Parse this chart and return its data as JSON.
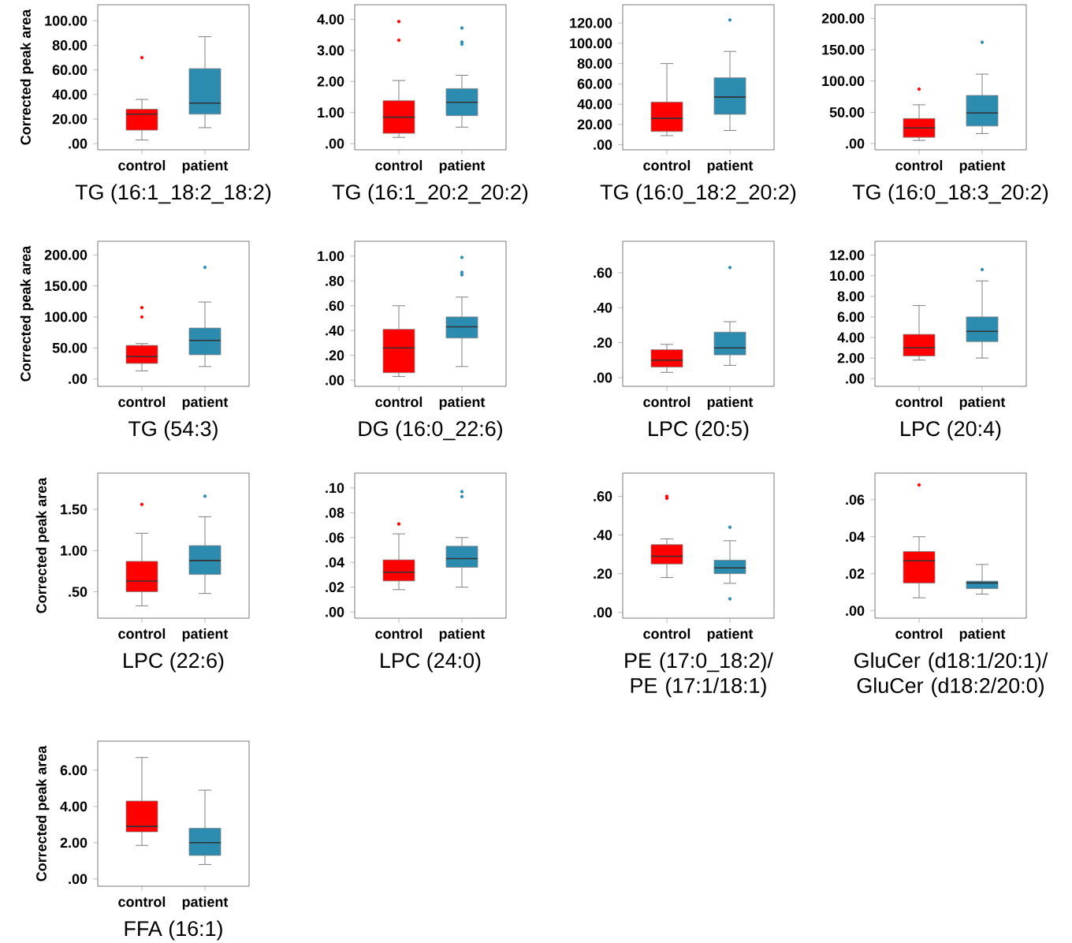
{
  "chart_data": [
    {
      "type": "box",
      "xlabel": "TG (16:1_18:2_18:2)",
      "ylabel": "Corrected peak area",
      "categories": [
        "control",
        "patient"
      ],
      "colors": [
        "#ff0000",
        "#2b8cb0"
      ],
      "ylim": [
        -5,
        113
      ],
      "yticks": [
        {
          "value": 0,
          "label": ".00"
        },
        {
          "value": 20,
          "label": "20.00"
        },
        {
          "value": 40,
          "label": "40.00"
        },
        {
          "value": 60,
          "label": "60.00"
        },
        {
          "value": 80,
          "label": "80.00"
        },
        {
          "value": 100,
          "label": "100.00"
        }
      ],
      "boxes": [
        {
          "low": 3,
          "q1": 11,
          "median": 24,
          "q3": 28,
          "high": 36,
          "outliers": [
            70
          ]
        },
        {
          "low": 13,
          "q1": 24,
          "median": 33,
          "q3": 61,
          "high": 87
        }
      ]
    },
    {
      "type": "box",
      "xlabel": "TG (16:1_20:2_20:2)",
      "categories": [
        "control",
        "patient"
      ],
      "colors": [
        "#ff0000",
        "#2b8cb0"
      ],
      "ylim": [
        -0.2,
        4.47
      ],
      "yticks": [
        {
          "value": 0,
          "label": ".00"
        },
        {
          "value": 1,
          "label": "1.00"
        },
        {
          "value": 2,
          "label": "2.00"
        },
        {
          "value": 3,
          "label": "3.00"
        },
        {
          "value": 4,
          "label": "4.00"
        }
      ],
      "boxes": [
        {
          "low": 0.2,
          "q1": 0.33,
          "median": 0.85,
          "q3": 1.38,
          "high": 2.03,
          "outliers": [
            3.33,
            3.93
          ]
        },
        {
          "low": 0.53,
          "q1": 0.9,
          "median": 1.33,
          "q3": 1.77,
          "high": 2.2,
          "outliers": [
            3.2,
            3.27,
            3.72
          ]
        }
      ]
    },
    {
      "type": "box",
      "xlabel": "TG (16:0_18:2_20:2)",
      "categories": [
        "control",
        "patient"
      ],
      "colors": [
        "#ff0000",
        "#2b8cb0"
      ],
      "ylim": [
        -5,
        138
      ],
      "yticks": [
        {
          "value": 0,
          "label": ".00"
        },
        {
          "value": 20,
          "label": "20.00"
        },
        {
          "value": 40,
          "label": "40.00"
        },
        {
          "value": 60,
          "label": "60.00"
        },
        {
          "value": 80,
          "label": "80.00"
        },
        {
          "value": 100,
          "label": "100.00"
        },
        {
          "value": 120,
          "label": "120.00"
        }
      ],
      "boxes": [
        {
          "low": 9,
          "q1": 13,
          "median": 26,
          "q3": 42,
          "high": 80
        },
        {
          "low": 14,
          "q1": 30,
          "median": 47,
          "q3": 66,
          "high": 92,
          "outliers": [
            123
          ]
        }
      ]
    },
    {
      "type": "box",
      "xlabel": "TG (16:0_18:3_20:2)",
      "categories": [
        "control",
        "patient"
      ],
      "colors": [
        "#ff0000",
        "#2b8cb0"
      ],
      "ylim": [
        -10,
        222
      ],
      "yticks": [
        {
          "value": 0,
          "label": ".00"
        },
        {
          "value": 50,
          "label": "50.00"
        },
        {
          "value": 100,
          "label": "100.00"
        },
        {
          "value": 150,
          "label": "150.00"
        },
        {
          "value": 200,
          "label": "200.00"
        }
      ],
      "boxes": [
        {
          "low": 5,
          "q1": 10,
          "median": 25,
          "q3": 40,
          "high": 62,
          "outliers": [
            87
          ]
        },
        {
          "low": 16,
          "q1": 28,
          "median": 49,
          "q3": 77,
          "high": 111,
          "outliers": [
            162
          ]
        }
      ]
    },
    {
      "type": "box",
      "xlabel": "TG (54:3)",
      "ylabel": "Corrected peak area",
      "categories": [
        "control",
        "patient"
      ],
      "colors": [
        "#ff0000",
        "#2b8cb0"
      ],
      "ylim": [
        -12,
        222
      ],
      "yticks": [
        {
          "value": 0,
          "label": ".00"
        },
        {
          "value": 50,
          "label": "50.00"
        },
        {
          "value": 100,
          "label": "100.00"
        },
        {
          "value": 150,
          "label": "150.00"
        },
        {
          "value": 200,
          "label": "200.00"
        }
      ],
      "boxes": [
        {
          "low": 13,
          "q1": 25,
          "median": 36,
          "q3": 54,
          "high": 57,
          "outliers": [
            100,
            115
          ]
        },
        {
          "low": 20,
          "q1": 39,
          "median": 62,
          "q3": 82,
          "high": 124,
          "outliers": [
            180
          ]
        }
      ]
    },
    {
      "type": "box",
      "xlabel": "DG (16:0_22:6)",
      "categories": [
        "control",
        "patient"
      ],
      "colors": [
        "#ff0000",
        "#2b8cb0"
      ],
      "ylim": [
        -0.05,
        1.12
      ],
      "yticks": [
        {
          "value": 0,
          "label": ".00"
        },
        {
          "value": 0.2,
          "label": ".20"
        },
        {
          "value": 0.4,
          "label": ".40"
        },
        {
          "value": 0.6,
          "label": ".60"
        },
        {
          "value": 0.8,
          "label": ".80"
        },
        {
          "value": 1,
          "label": "1.00"
        }
      ],
      "boxes": [
        {
          "low": 0.03,
          "q1": 0.06,
          "median": 0.26,
          "q3": 0.41,
          "high": 0.6
        },
        {
          "low": 0.11,
          "q1": 0.34,
          "median": 0.43,
          "q3": 0.51,
          "high": 0.67,
          "outliers": [
            0.85,
            0.87,
            0.99
          ]
        }
      ]
    },
    {
      "type": "box",
      "xlabel": "LPC (20:5)",
      "categories": [
        "control",
        "patient"
      ],
      "colors": [
        "#ff0000",
        "#2b8cb0"
      ],
      "ylim": [
        -0.05,
        0.78
      ],
      "yticks": [
        {
          "value": 0,
          "label": ".00"
        },
        {
          "value": 0.2,
          "label": ".20"
        },
        {
          "value": 0.4,
          "label": ".40"
        },
        {
          "value": 0.6,
          "label": ".60"
        }
      ],
      "boxes": [
        {
          "low": 0.03,
          "q1": 0.06,
          "median": 0.1,
          "q3": 0.16,
          "high": 0.19
        },
        {
          "low": 0.07,
          "q1": 0.13,
          "median": 0.17,
          "q3": 0.26,
          "high": 0.32,
          "outliers": [
            0.63
          ]
        }
      ]
    },
    {
      "type": "box",
      "xlabel": "LPC (20:4)",
      "categories": [
        "control",
        "patient"
      ],
      "colors": [
        "#ff0000",
        "#2b8cb0"
      ],
      "ylim": [
        -0.75,
        13.35
      ],
      "yticks": [
        {
          "value": 0,
          "label": ".00"
        },
        {
          "value": 2,
          "label": "2.00"
        },
        {
          "value": 4,
          "label": "4.00"
        },
        {
          "value": 6,
          "label": "6.00"
        },
        {
          "value": 8,
          "label": "8.00"
        },
        {
          "value": 10,
          "label": "10.00"
        },
        {
          "value": 12,
          "label": "12.00"
        }
      ],
      "boxes": [
        {
          "low": 1.8,
          "q1": 2.2,
          "median": 3.0,
          "q3": 4.3,
          "high": 7.1
        },
        {
          "low": 2.0,
          "q1": 3.6,
          "median": 4.6,
          "q3": 6.0,
          "high": 9.5,
          "outliers": [
            10.6
          ]
        }
      ]
    },
    {
      "type": "box",
      "xlabel": "LPC (22:6)",
      "ylabel": "Corrected peak area",
      "categories": [
        "control",
        "patient"
      ],
      "colors": [
        "#ff0000",
        "#2b8cb0"
      ],
      "ylim": [
        0.18,
        1.94
      ],
      "yticks": [
        {
          "value": 0.5,
          "label": ".50"
        },
        {
          "value": 1,
          "label": "1.00"
        },
        {
          "value": 1.5,
          "label": "1.50"
        }
      ],
      "boxes": [
        {
          "low": 0.33,
          "q1": 0.5,
          "median": 0.63,
          "q3": 0.87,
          "high": 1.21,
          "outliers": [
            1.56
          ]
        },
        {
          "low": 0.48,
          "q1": 0.71,
          "median": 0.88,
          "q3": 1.06,
          "high": 1.41,
          "outliers": [
            1.66
          ]
        }
      ]
    },
    {
      "type": "box",
      "xlabel": "LPC (24:0)",
      "categories": [
        "control",
        "patient"
      ],
      "colors": [
        "#ff0000",
        "#2b8cb0"
      ],
      "ylim": [
        -0.005,
        0.112
      ],
      "yticks": [
        {
          "value": 0,
          "label": ".00"
        },
        {
          "value": 0.02,
          "label": ".02"
        },
        {
          "value": 0.04,
          "label": ".04"
        },
        {
          "value": 0.06,
          "label": ".06"
        },
        {
          "value": 0.08,
          "label": ".08"
        },
        {
          "value": 0.1,
          "label": ".10"
        }
      ],
      "boxes": [
        {
          "low": 0.018,
          "q1": 0.025,
          "median": 0.032,
          "q3": 0.042,
          "high": 0.063,
          "outliers": [
            0.071
          ]
        },
        {
          "low": 0.02,
          "q1": 0.036,
          "median": 0.043,
          "q3": 0.053,
          "high": 0.06,
          "outliers": [
            0.093,
            0.097
          ]
        }
      ]
    },
    {
      "type": "box",
      "xlabel": "PE (17:0_18:2)/ PE (17:1/18:1)",
      "categories": [
        "control",
        "patient"
      ],
      "colors": [
        "#ff0000",
        "#2b8cb0"
      ],
      "ylim": [
        -0.03,
        0.72
      ],
      "yticks": [
        {
          "value": 0,
          "label": ".00"
        },
        {
          "value": 0.2,
          "label": ".20"
        },
        {
          "value": 0.4,
          "label": ".40"
        },
        {
          "value": 0.6,
          "label": ".60"
        }
      ],
      "boxes": [
        {
          "low": 0.18,
          "q1": 0.25,
          "median": 0.29,
          "q3": 0.35,
          "high": 0.38,
          "outliers": [
            0.59,
            0.6
          ]
        },
        {
          "low": 0.15,
          "q1": 0.2,
          "median": 0.23,
          "q3": 0.27,
          "high": 0.37,
          "outliers": [
            0.07,
            0.44
          ]
        }
      ]
    },
    {
      "type": "box",
      "xlabel": "GluCer (d18:1/20:1)/ GluCer (d18:2/20:0)",
      "categories": [
        "control",
        "patient"
      ],
      "colors": [
        "#ff0000",
        "#2b8cb0"
      ],
      "ylim": [
        -0.004,
        0.0744
      ],
      "yticks": [
        {
          "value": 0,
          "label": ".00"
        },
        {
          "value": 0.02,
          "label": ".02"
        },
        {
          "value": 0.04,
          "label": ".04"
        },
        {
          "value": 0.06,
          "label": ".06"
        }
      ],
      "boxes": [
        {
          "low": 0.007,
          "q1": 0.015,
          "median": 0.027,
          "q3": 0.032,
          "high": 0.04,
          "outliers": [
            0.068
          ]
        },
        {
          "low": 0.009,
          "q1": 0.012,
          "median": 0.015,
          "q3": 0.016,
          "high": 0.025
        }
      ]
    },
    {
      "type": "box",
      "xlabel": "FFA (16:1)",
      "ylabel": "Corrected peak area",
      "categories": [
        "control",
        "patient"
      ],
      "colors": [
        "#ff0000",
        "#2b8cb0"
      ],
      "ylim": [
        -0.4,
        7.6
      ],
      "yticks": [
        {
          "value": 0,
          "label": ".00"
        },
        {
          "value": 2,
          "label": "2.00"
        },
        {
          "value": 4,
          "label": "4.00"
        },
        {
          "value": 6,
          "label": "6.00"
        }
      ],
      "boxes": [
        {
          "low": 1.85,
          "q1": 2.6,
          "median": 2.9,
          "q3": 4.3,
          "high": 6.7
        },
        {
          "low": 0.8,
          "q1": 1.3,
          "median": 2.0,
          "q3": 2.8,
          "high": 4.9
        }
      ]
    }
  ]
}
